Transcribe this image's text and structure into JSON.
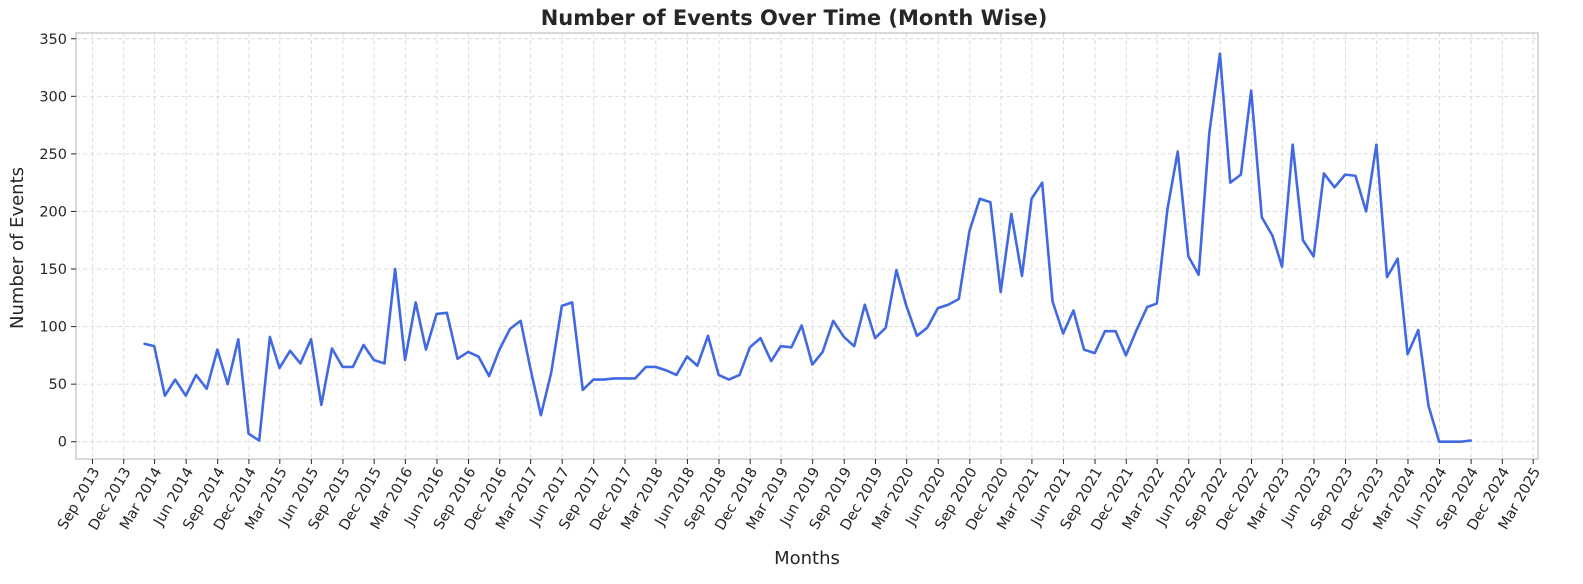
{
  "chart_data": {
    "type": "line",
    "title": "Number of Events Over Time (Month Wise)",
    "xlabel": "Months",
    "ylabel": "Number of Events",
    "grid": true,
    "line_color": "#4169e1",
    "ylim": [
      -15,
      355
    ],
    "xlim": [
      "2013-07-15",
      "2025-03-15"
    ],
    "yticks": [
      0,
      50,
      100,
      150,
      200,
      250,
      300,
      350
    ],
    "xticks": [
      {
        "date": "2013-09-01",
        "label": "Sep 2013"
      },
      {
        "date": "2013-12-01",
        "label": "Dec 2013"
      },
      {
        "date": "2014-03-01",
        "label": "Mar 2014"
      },
      {
        "date": "2014-06-01",
        "label": "Jun 2014"
      },
      {
        "date": "2014-09-01",
        "label": "Sep 2014"
      },
      {
        "date": "2014-12-01",
        "label": "Dec 2014"
      },
      {
        "date": "2015-03-01",
        "label": "Mar 2015"
      },
      {
        "date": "2015-06-01",
        "label": "Jun 2015"
      },
      {
        "date": "2015-09-01",
        "label": "Sep 2015"
      },
      {
        "date": "2015-12-01",
        "label": "Dec 2015"
      },
      {
        "date": "2016-03-01",
        "label": "Mar 2016"
      },
      {
        "date": "2016-06-01",
        "label": "Jun 2016"
      },
      {
        "date": "2016-09-01",
        "label": "Sep 2016"
      },
      {
        "date": "2016-12-01",
        "label": "Dec 2016"
      },
      {
        "date": "2017-03-01",
        "label": "Mar 2017"
      },
      {
        "date": "2017-06-01",
        "label": "Jun 2017"
      },
      {
        "date": "2017-09-01",
        "label": "Sep 2017"
      },
      {
        "date": "2017-12-01",
        "label": "Dec 2017"
      },
      {
        "date": "2018-03-01",
        "label": "Mar 2018"
      },
      {
        "date": "2018-06-01",
        "label": "Jun 2018"
      },
      {
        "date": "2018-09-01",
        "label": "Sep 2018"
      },
      {
        "date": "2018-12-01",
        "label": "Dec 2018"
      },
      {
        "date": "2019-03-01",
        "label": "Mar 2019"
      },
      {
        "date": "2019-06-01",
        "label": "Jun 2019"
      },
      {
        "date": "2019-09-01",
        "label": "Sep 2019"
      },
      {
        "date": "2019-12-01",
        "label": "Dec 2019"
      },
      {
        "date": "2020-03-01",
        "label": "Mar 2020"
      },
      {
        "date": "2020-06-01",
        "label": "Jun 2020"
      },
      {
        "date": "2020-09-01",
        "label": "Sep 2020"
      },
      {
        "date": "2020-12-01",
        "label": "Dec 2020"
      },
      {
        "date": "2021-03-01",
        "label": "Mar 2021"
      },
      {
        "date": "2021-06-01",
        "label": "Jun 2021"
      },
      {
        "date": "2021-09-01",
        "label": "Sep 2021"
      },
      {
        "date": "2021-12-01",
        "label": "Dec 2021"
      },
      {
        "date": "2022-03-01",
        "label": "Mar 2022"
      },
      {
        "date": "2022-06-01",
        "label": "Jun 2022"
      },
      {
        "date": "2022-09-01",
        "label": "Sep 2022"
      },
      {
        "date": "2022-12-01",
        "label": "Dec 2022"
      },
      {
        "date": "2023-03-01",
        "label": "Mar 2023"
      },
      {
        "date": "2023-06-01",
        "label": "Jun 2023"
      },
      {
        "date": "2023-09-01",
        "label": "Sep 2023"
      },
      {
        "date": "2023-12-01",
        "label": "Dec 2023"
      },
      {
        "date": "2024-03-01",
        "label": "Mar 2024"
      },
      {
        "date": "2024-06-01",
        "label": "Jun 2024"
      },
      {
        "date": "2024-09-01",
        "label": "Sep 2024"
      },
      {
        "date": "2024-12-01",
        "label": "Dec 2024"
      },
      {
        "date": "2025-03-01",
        "label": "Mar 2025"
      }
    ],
    "x": [
      "2014-01-31",
      "2014-02-28",
      "2014-03-31",
      "2014-04-30",
      "2014-05-31",
      "2014-06-30",
      "2014-07-31",
      "2014-08-31",
      "2014-09-30",
      "2014-10-31",
      "2014-11-30",
      "2014-12-31",
      "2015-01-31",
      "2015-02-28",
      "2015-03-31",
      "2015-04-30",
      "2015-05-31",
      "2015-06-30",
      "2015-07-31",
      "2015-08-31",
      "2015-09-30",
      "2015-10-31",
      "2015-11-30",
      "2015-12-31",
      "2016-01-31",
      "2016-02-29",
      "2016-03-31",
      "2016-04-30",
      "2016-05-31",
      "2016-06-30",
      "2016-07-31",
      "2016-08-31",
      "2016-09-30",
      "2016-10-31",
      "2016-11-30",
      "2016-12-31",
      "2017-01-31",
      "2017-02-28",
      "2017-03-31",
      "2017-04-30",
      "2017-05-31",
      "2017-06-30",
      "2017-07-31",
      "2017-08-31",
      "2017-09-30",
      "2017-10-31",
      "2017-11-30",
      "2017-12-31",
      "2018-01-31",
      "2018-02-28",
      "2018-03-31",
      "2018-04-30",
      "2018-05-31",
      "2018-06-30",
      "2018-07-31",
      "2018-08-31",
      "2018-09-30",
      "2018-10-31",
      "2018-11-30",
      "2018-12-31",
      "2019-01-31",
      "2019-02-28",
      "2019-03-31",
      "2019-04-30",
      "2019-05-31",
      "2019-06-30",
      "2019-07-31",
      "2019-08-31",
      "2019-09-30",
      "2019-10-31",
      "2019-11-30",
      "2019-12-31",
      "2020-01-31",
      "2020-02-29",
      "2020-03-31",
      "2020-04-30",
      "2020-05-31",
      "2020-06-30",
      "2020-07-31",
      "2020-08-31",
      "2020-09-30",
      "2020-10-31",
      "2020-11-30",
      "2020-12-31",
      "2021-01-31",
      "2021-02-28",
      "2021-03-31",
      "2021-04-30",
      "2021-05-31",
      "2021-06-30",
      "2021-07-31",
      "2021-08-31",
      "2021-09-30",
      "2021-10-31",
      "2021-11-30",
      "2021-12-31",
      "2022-01-31",
      "2022-02-28",
      "2022-03-31",
      "2022-04-30",
      "2022-05-31",
      "2022-06-30",
      "2022-07-31",
      "2022-08-31",
      "2022-09-30",
      "2022-10-31",
      "2022-11-30",
      "2022-12-31",
      "2023-01-31",
      "2023-02-28",
      "2023-03-31",
      "2023-04-30",
      "2023-05-31",
      "2023-06-30",
      "2023-07-31",
      "2023-08-31",
      "2023-09-30",
      "2023-10-31",
      "2023-11-30",
      "2023-12-31",
      "2024-01-31",
      "2024-02-29",
      "2024-03-31",
      "2024-04-30",
      "2024-05-31",
      "2024-06-30",
      "2024-07-31",
      "2024-08-31"
    ],
    "series": [
      {
        "values": [
          85,
          83,
          40,
          54,
          40,
          58,
          46,
          80,
          50,
          89,
          7,
          1,
          91,
          64,
          79,
          68,
          89,
          32,
          81,
          65,
          65,
          84,
          71,
          68,
          150,
          71,
          121,
          80,
          111,
          112,
          72,
          78,
          74,
          57,
          80,
          98,
          105,
          64,
          23,
          60,
          118,
          121,
          45,
          54,
          54,
          55,
          55,
          55,
          65,
          65,
          62,
          58,
          74,
          66,
          92,
          58,
          54,
          58,
          82,
          90,
          70,
          83,
          82,
          101,
          67,
          78,
          105,
          91,
          83,
          119,
          90,
          99,
          149,
          118,
          92,
          99,
          116,
          119,
          124,
          183,
          211,
          208,
          130,
          198,
          144,
          211,
          225,
          122,
          94,
          114,
          80,
          77,
          96,
          96,
          75,
          97,
          117,
          120,
          202,
          252,
          161,
          145,
          268,
          337,
          225,
          232,
          305,
          195,
          179,
          152,
          258,
          175,
          161,
          233,
          221,
          232,
          231,
          200,
          258,
          143,
          159,
          76,
          97,
          31,
          0,
          0,
          0,
          1
        ]
      }
    ]
  }
}
